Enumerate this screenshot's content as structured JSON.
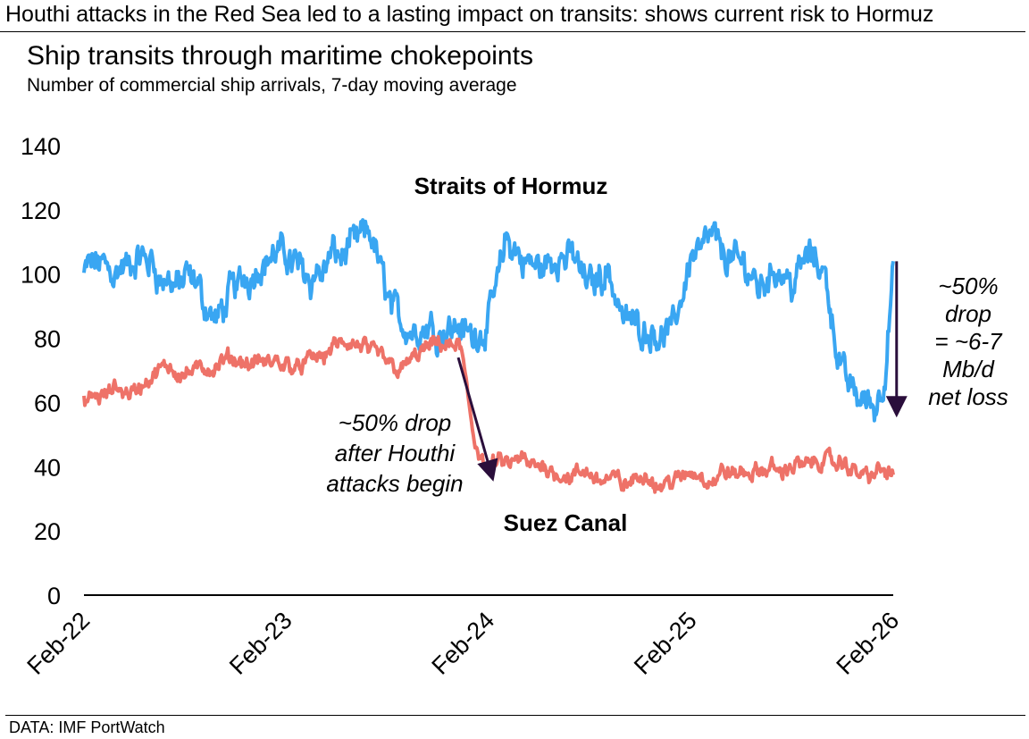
{
  "headline": "Houthi attacks in the Red Sea led to a lasting impact on transits: shows current risk to Hormuz",
  "source": "DATA: IMF PortWatch",
  "colors": {
    "hormuz": "#39A6F2",
    "suez": "#EE7268",
    "arrow": "#2A0E3B",
    "axis": "#000000"
  },
  "chart_data": {
    "type": "line",
    "title": "Ship transits through maritime chokepoints",
    "subtitle": "Number of commercial ship arrivals, 7-day moving average",
    "xlabel": "",
    "ylabel": "",
    "ylim": [
      0,
      140
    ],
    "yticks": [
      0,
      20,
      40,
      60,
      80,
      100,
      120,
      140
    ],
    "xlim": [
      "2022-02",
      "2026-02"
    ],
    "xticks": [
      {
        "x": 0,
        "label": "Feb-22"
      },
      {
        "x": 12,
        "label": "Feb-23"
      },
      {
        "x": 24,
        "label": "Feb-24"
      },
      {
        "x": 36,
        "label": "Feb-25"
      },
      {
        "x": 48,
        "label": "Feb-26"
      }
    ],
    "x_units": "months since Feb-22",
    "series": [
      {
        "name": "Straits of Hormuz",
        "color": "#39A6F2",
        "points": [
          [
            0,
            100
          ],
          [
            1,
            103
          ],
          [
            2,
            104
          ],
          [
            3,
            100
          ],
          [
            4,
            103
          ],
          [
            5,
            96
          ],
          [
            6,
            98
          ],
          [
            7,
            90
          ],
          [
            8,
            85
          ],
          [
            9,
            96
          ],
          [
            10,
            103
          ],
          [
            11,
            107
          ],
          [
            12,
            105
          ],
          [
            13,
            104
          ],
          [
            14,
            102
          ],
          [
            15,
            106
          ],
          [
            16,
            108
          ],
          [
            17,
            111
          ],
          [
            18,
            94
          ],
          [
            19,
            85
          ],
          [
            20,
            83
          ],
          [
            21,
            85
          ],
          [
            22,
            86
          ],
          [
            23,
            81
          ],
          [
            24,
            85
          ],
          [
            25,
            110
          ],
          [
            26,
            103
          ],
          [
            27,
            101
          ],
          [
            28,
            104
          ],
          [
            29,
            106
          ],
          [
            30,
            97
          ],
          [
            31,
            103
          ],
          [
            32,
            88
          ],
          [
            33,
            85
          ],
          [
            34,
            84
          ],
          [
            35,
            82
          ],
          [
            36,
            107
          ],
          [
            37,
            114
          ],
          [
            38,
            106
          ],
          [
            39,
            102
          ],
          [
            40,
            98
          ],
          [
            41,
            103
          ],
          [
            42,
            100
          ],
          [
            43,
            106
          ],
          [
            44,
            100
          ],
          [
            45,
            68
          ],
          [
            46,
            62
          ],
          [
            47,
            60
          ],
          [
            47.5,
            70
          ],
          [
            48,
            100
          ]
        ]
      },
      {
        "name": "Suez Canal",
        "color": "#EE7268",
        "points": [
          [
            0,
            60
          ],
          [
            1,
            61
          ],
          [
            2,
            63
          ],
          [
            3,
            64
          ],
          [
            4,
            67
          ],
          [
            5,
            70
          ],
          [
            6,
            71
          ],
          [
            7,
            70
          ],
          [
            8,
            70
          ],
          [
            9,
            72
          ],
          [
            10,
            72
          ],
          [
            11,
            71
          ],
          [
            12,
            72
          ],
          [
            13,
            73
          ],
          [
            14,
            74
          ],
          [
            15,
            78
          ],
          [
            16,
            76
          ],
          [
            17,
            75
          ],
          [
            18,
            73
          ],
          [
            19,
            72
          ],
          [
            20,
            76
          ],
          [
            21,
            77
          ],
          [
            22,
            77
          ],
          [
            22.4,
            75
          ],
          [
            22.8,
            60
          ],
          [
            23.2,
            48
          ],
          [
            23.7,
            42
          ],
          [
            24,
            39
          ],
          [
            25,
            41
          ],
          [
            26,
            40
          ],
          [
            27,
            39
          ],
          [
            28,
            40
          ],
          [
            29,
            37
          ],
          [
            30,
            36
          ],
          [
            31,
            37
          ],
          [
            32,
            35
          ],
          [
            33,
            36
          ],
          [
            34,
            35
          ],
          [
            35,
            36
          ],
          [
            36,
            37
          ],
          [
            37,
            36
          ],
          [
            38,
            37
          ],
          [
            39,
            38
          ],
          [
            40,
            37
          ],
          [
            41,
            39
          ],
          [
            42,
            40
          ],
          [
            43,
            41
          ],
          [
            44,
            42
          ],
          [
            45,
            40
          ],
          [
            46,
            37
          ],
          [
            47,
            39
          ],
          [
            48,
            38
          ]
        ]
      }
    ],
    "series_labels": {
      "hormuz": "Straits of Hormuz",
      "suez": "Suez Canal"
    },
    "annotations": [
      {
        "id": "suez-drop",
        "lines": [
          "~50% drop",
          "after Houthi",
          "attacks begin"
        ],
        "arrow_from": [
          22.2,
          74
        ],
        "arrow_to": [
          24.2,
          37
        ]
      },
      {
        "id": "hormuz-drop",
        "lines": [
          "~50%",
          "drop",
          "= ~6-7",
          "Mb/d",
          "net loss"
        ],
        "arrow_from": [
          48.2,
          104
        ],
        "arrow_to": [
          48.2,
          57
        ]
      }
    ]
  }
}
